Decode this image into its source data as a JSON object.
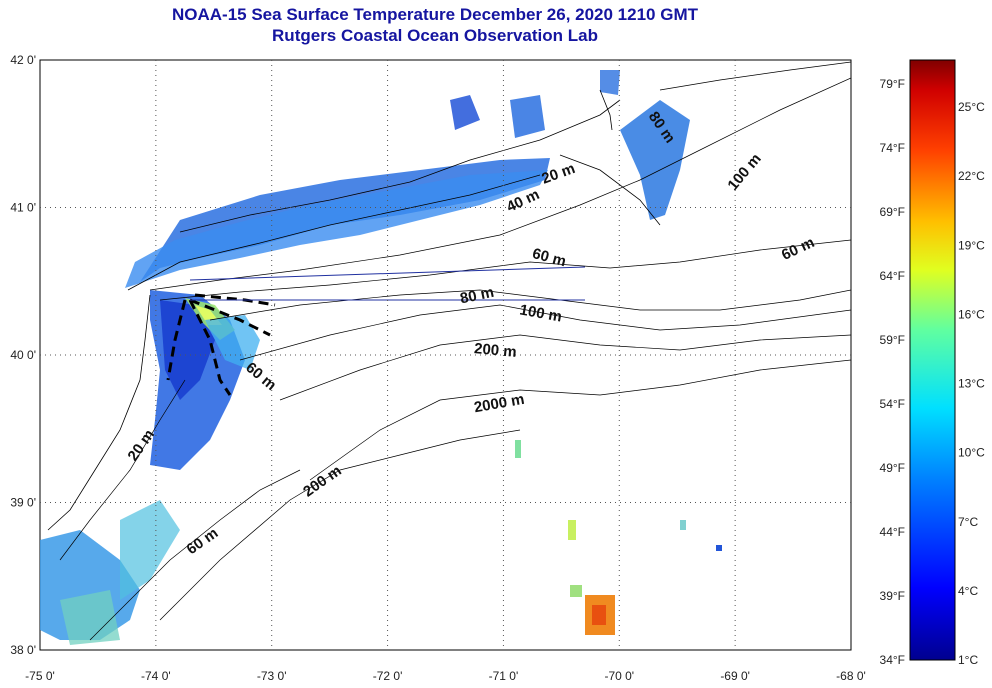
{
  "title": "NOAA-15 Sea Surface Temperature December 26, 2020 1210 GMT",
  "subtitle": "Rutgers Coastal Ocean Observation Lab",
  "map": {
    "lon_range": [
      -75,
      -68
    ],
    "lat_range": [
      38,
      42
    ],
    "lon_ticks": [
      "-75 0'",
      "-74 0'",
      "-73 0'",
      "-72 0'",
      "-71 0'",
      "-70 0'",
      "-69 0'",
      "-68 0'"
    ],
    "lat_ticks": [
      "42 0'",
      "41 0'",
      "40 0'",
      "39 0'",
      "38 0'"
    ],
    "contour_labels": [
      "20 m",
      "40 m",
      "60 m",
      "100 m",
      "60 m",
      "80 m",
      "80 m",
      "100 m",
      "200 m",
      "60 m",
      "2000 m",
      "20 m",
      "200 m",
      "60 m"
    ]
  },
  "colorbar": {
    "fahrenheit": [
      "79°F",
      "74°F",
      "69°F",
      "64°F",
      "59°F",
      "54°F",
      "49°F",
      "44°F",
      "39°F",
      "34°F"
    ],
    "celsius": [
      "25°C",
      "22°C",
      "19°C",
      "16°C",
      "13°C",
      "10°C",
      "7°C",
      "4°C",
      "1°C"
    ]
  }
}
